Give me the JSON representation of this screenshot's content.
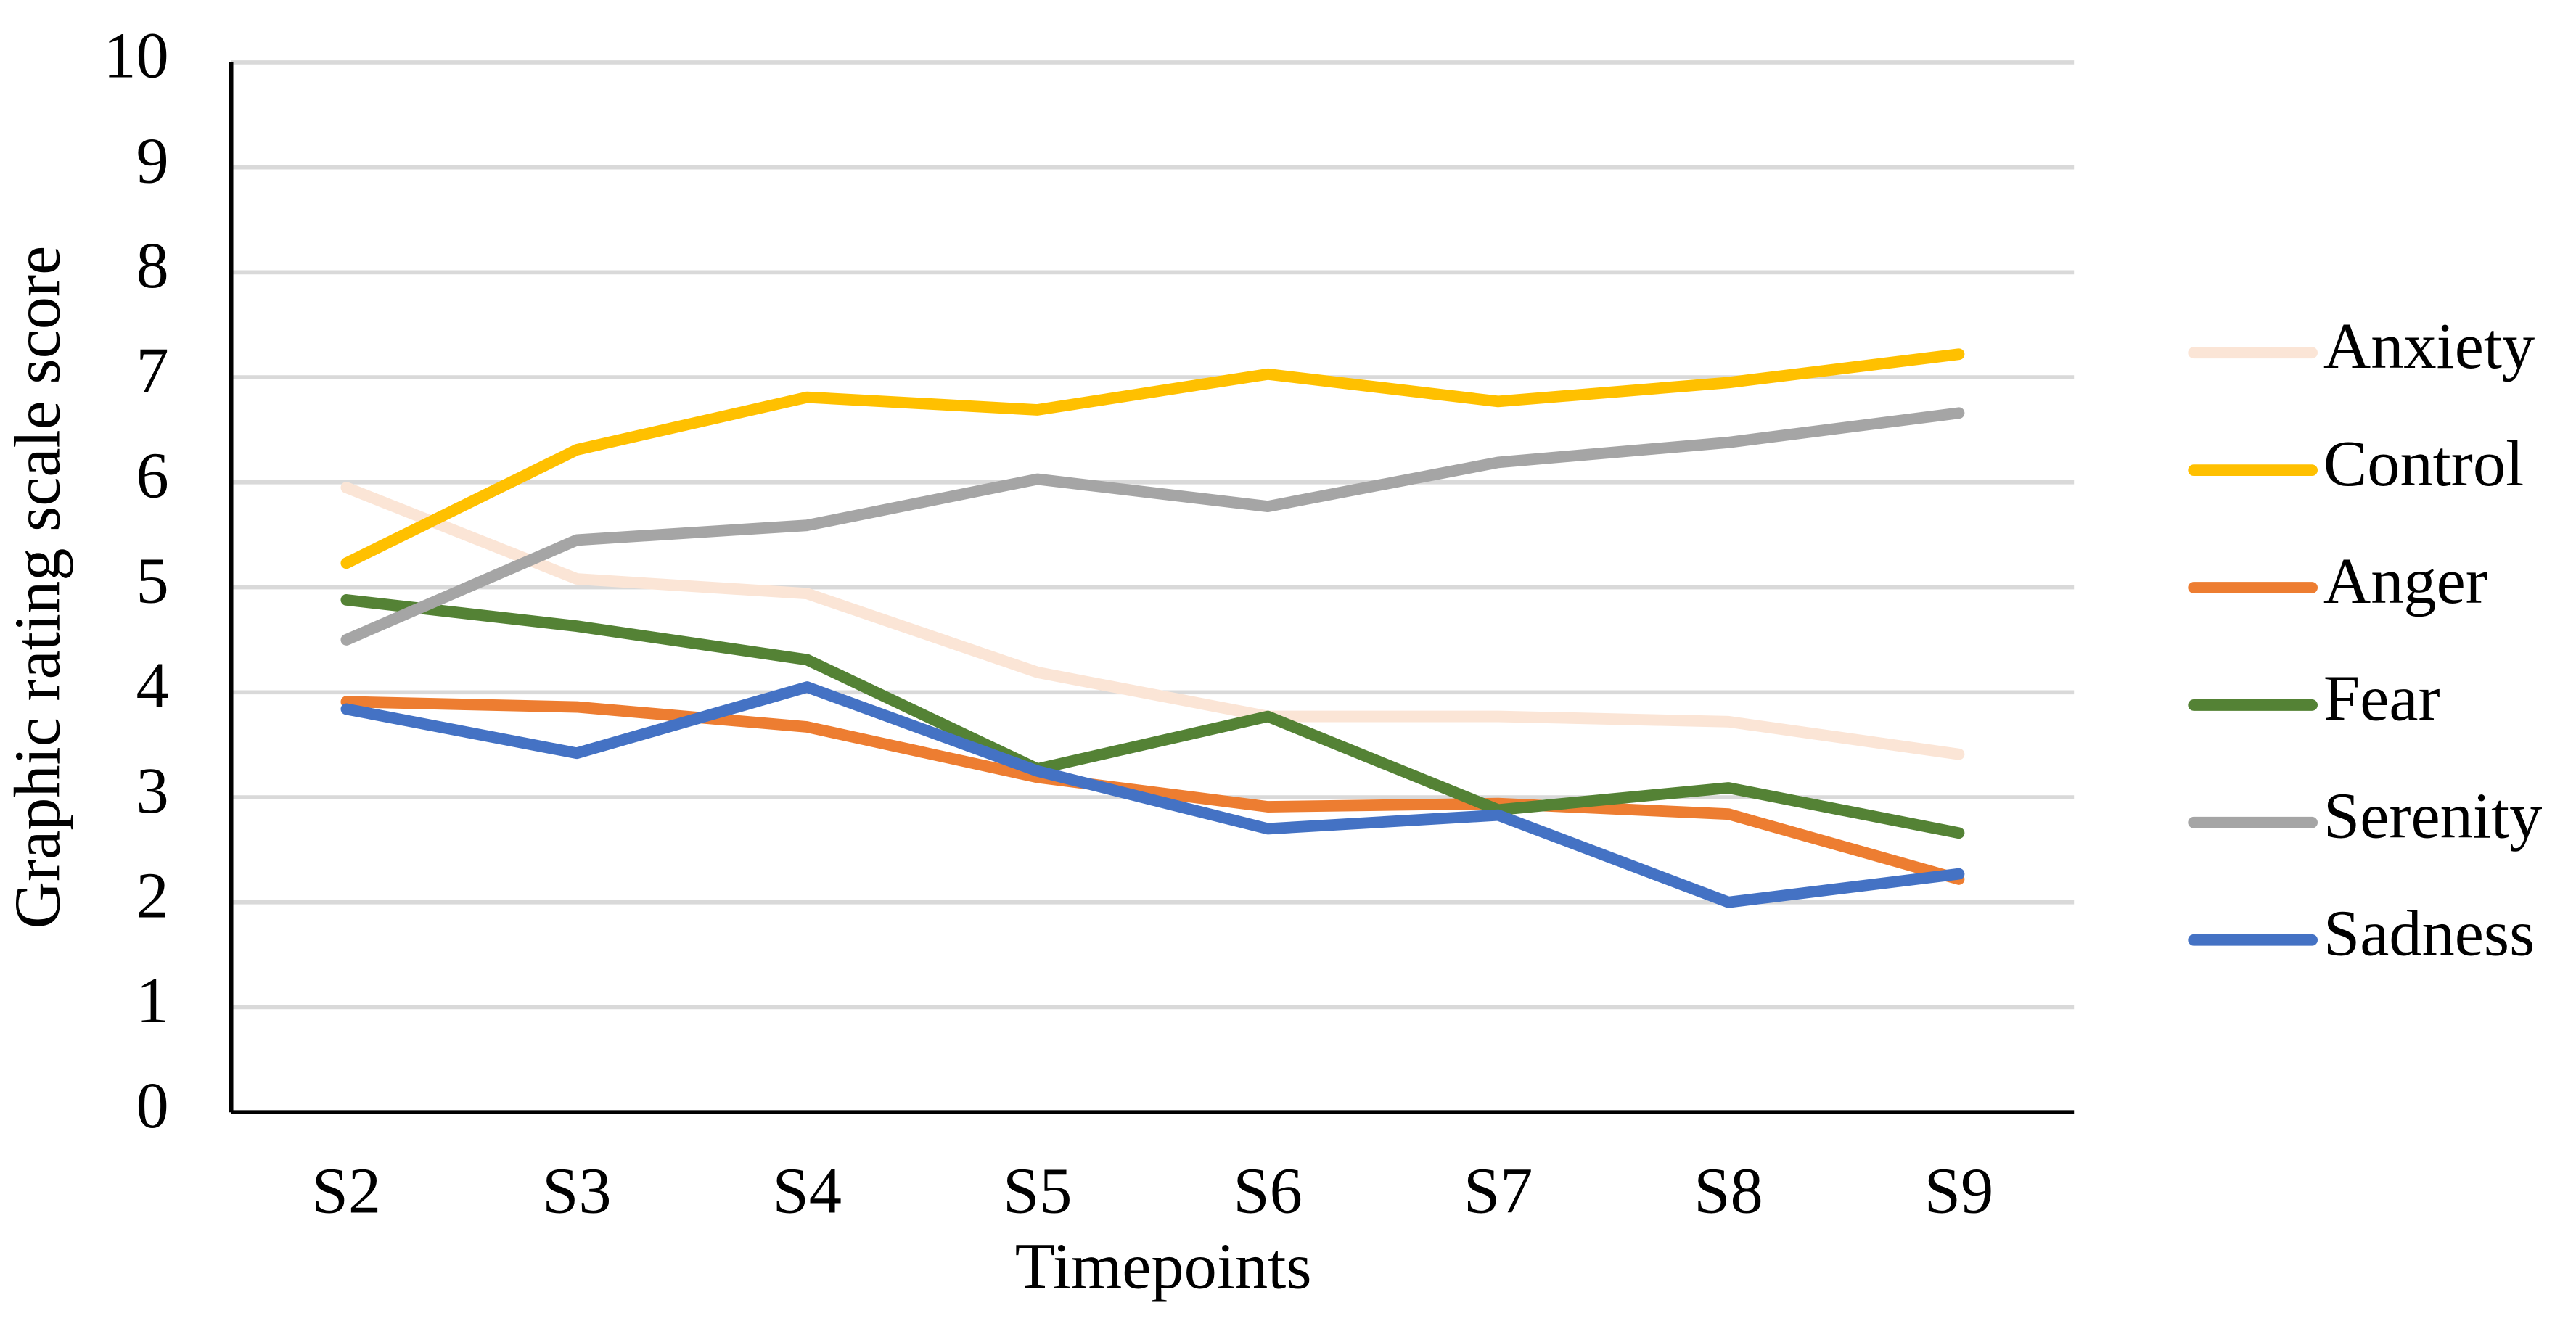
{
  "chart_data": {
    "type": "line",
    "x_label": "Timepoints",
    "y_label": "Graphic rating scale score",
    "categories": [
      "S2",
      "S3",
      "S4",
      "S5",
      "S6",
      "S7",
      "S8",
      "S9"
    ],
    "series": [
      {
        "name": "Anxiety",
        "color": "#fbe5d6",
        "values": [
          5.95,
          5.08,
          4.94,
          4.19,
          3.77,
          3.77,
          3.72,
          3.41
        ]
      },
      {
        "name": "Control",
        "color": "#ffc000",
        "values": [
          5.23,
          6.31,
          6.81,
          6.69,
          7.03,
          6.77,
          6.95,
          7.22
        ]
      },
      {
        "name": "Anger",
        "color": "#ed7d31",
        "values": [
          3.91,
          3.86,
          3.67,
          3.19,
          2.91,
          2.94,
          2.84,
          2.22
        ]
      },
      {
        "name": "Fear",
        "color": "#548235",
        "values": [
          4.88,
          4.63,
          4.31,
          3.27,
          3.77,
          2.88,
          3.09,
          2.66
        ]
      },
      {
        "name": "Serenity",
        "color": "#a5a5a5",
        "values": [
          4.5,
          5.45,
          5.59,
          6.03,
          5.77,
          6.19,
          6.38,
          6.66
        ]
      },
      {
        "name": "Sadness",
        "color": "#4472c4",
        "values": [
          3.84,
          3.42,
          4.05,
          3.25,
          2.7,
          2.83,
          2.0,
          2.27
        ]
      }
    ],
    "ylim": [
      0,
      10
    ],
    "yticks": [
      0,
      1,
      2,
      3,
      4,
      5,
      6,
      7,
      8,
      9,
      10
    ],
    "grid": true,
    "legend": "right"
  }
}
